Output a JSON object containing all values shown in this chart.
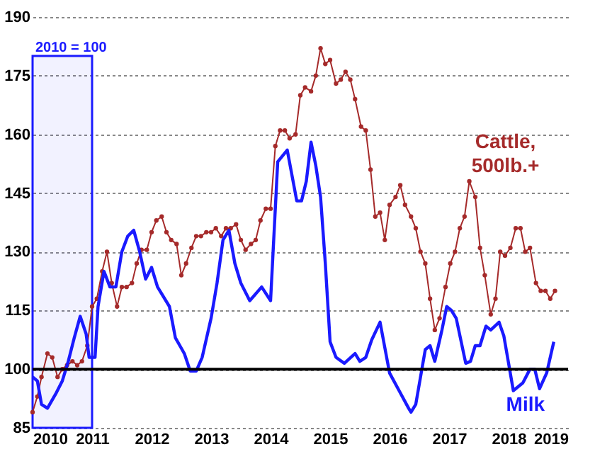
{
  "chart_data": {
    "type": "line",
    "xlim": [
      2010,
      2019
    ],
    "xticks": [
      2010,
      2011,
      2012,
      2013,
      2014,
      2015,
      2016,
      2017,
      2018,
      2019
    ],
    "ylim": [
      85,
      190
    ],
    "yticks": [
      85,
      100,
      115,
      130,
      145,
      160,
      175,
      190
    ],
    "grid": "y",
    "series": [
      {
        "name": "Cattle, 500lb.+",
        "color": "#a52a2a",
        "marker": "circle",
        "x": [
          2010.0,
          2010.08,
          2010.15,
          2010.25,
          2010.33,
          2010.42,
          2010.5,
          2010.58,
          2010.67,
          2010.75,
          2010.83,
          2010.92,
          2011.0,
          2011.08,
          2011.17,
          2011.25,
          2011.33,
          2011.42,
          2011.5,
          2011.58,
          2011.67,
          2011.75,
          2011.83,
          2011.92,
          2012.0,
          2012.08,
          2012.17,
          2012.25,
          2012.33,
          2012.42,
          2012.5,
          2012.58,
          2012.67,
          2012.75,
          2012.83,
          2012.92,
          2013.0,
          2013.08,
          2013.17,
          2013.25,
          2013.33,
          2013.42,
          2013.5,
          2013.58,
          2013.67,
          2013.75,
          2013.83,
          2013.92,
          2014.0,
          2014.08,
          2014.16,
          2014.24,
          2014.32,
          2014.42,
          2014.5,
          2014.58,
          2014.68,
          2014.76,
          2014.84,
          2014.92,
          2015.0,
          2015.1,
          2015.18,
          2015.26,
          2015.34,
          2015.42,
          2015.52,
          2015.6,
          2015.68,
          2015.76,
          2015.84,
          2015.92,
          2016.0,
          2016.1,
          2016.18,
          2016.26,
          2016.36,
          2016.44,
          2016.52,
          2016.6,
          2016.68,
          2016.76,
          2016.84,
          2016.94,
          2017.02,
          2017.1,
          2017.18,
          2017.26,
          2017.34,
          2017.44,
          2017.52,
          2017.6,
          2017.7,
          2017.78,
          2017.86,
          2017.94,
          2018.03,
          2018.12,
          2018.2,
          2018.28,
          2018.36,
          2018.46,
          2018.54,
          2018.62,
          2018.7,
          2018.78
        ],
        "values": [
          89,
          93,
          98,
          104,
          103,
          98,
          100,
          101,
          102,
          101,
          102,
          106,
          116,
          118,
          125,
          130,
          122,
          116,
          121,
          121,
          122,
          127,
          130.5,
          130.5,
          135,
          138,
          139,
          135,
          133,
          132,
          124,
          127,
          131,
          134,
          134,
          135,
          135,
          136,
          134,
          136,
          136,
          137,
          133,
          130.5,
          132,
          133,
          138,
          141,
          141,
          157,
          161,
          161,
          159,
          160,
          170,
          172,
          171,
          175,
          182,
          178,
          179,
          173,
          174,
          176,
          174,
          169,
          162,
          161,
          151,
          139,
          140,
          133,
          142,
          144,
          147,
          142,
          139,
          136,
          130,
          127,
          118,
          110,
          113,
          121,
          127,
          130,
          136,
          139,
          148,
          144,
          131,
          124,
          114,
          118,
          130,
          129,
          131,
          136,
          136,
          130,
          131,
          122,
          120,
          120,
          118,
          120
        ]
      },
      {
        "name": "Milk",
        "color": "#1a1aff",
        "marker": "none",
        "x": [
          2010.0,
          2010.08,
          2010.15,
          2010.25,
          2010.4,
          2010.5,
          2010.6,
          2010.7,
          2010.8,
          2010.9,
          2010.95,
          2011.05,
          2011.1,
          2011.2,
          2011.3,
          2011.4,
          2011.5,
          2011.6,
          2011.7,
          2011.8,
          2011.9,
          2012.0,
          2012.1,
          2012.3,
          2012.4,
          2012.55,
          2012.65,
          2012.75,
          2012.85,
          2013.0,
          2013.1,
          2013.2,
          2013.3,
          2013.4,
          2013.5,
          2013.65,
          2013.85,
          2014.0,
          2014.12,
          2014.28,
          2014.44,
          2014.52,
          2014.6,
          2014.68,
          2014.76,
          2014.84,
          2014.92,
          2015.0,
          2015.1,
          2015.24,
          2015.42,
          2015.5,
          2015.6,
          2015.7,
          2015.84,
          2016.0,
          2016.16,
          2016.32,
          2016.36,
          2016.44,
          2016.6,
          2016.68,
          2016.76,
          2016.88,
          2016.96,
          2017.04,
          2017.12,
          2017.28,
          2017.36,
          2017.44,
          2017.52,
          2017.62,
          2017.7,
          2017.84,
          2017.92,
          2018.08,
          2018.24,
          2018.36,
          2018.44,
          2018.52,
          2018.64,
          2018.76
        ],
        "values": [
          98,
          97,
          91,
          90,
          94,
          97,
          102,
          108,
          113.5,
          109,
          103,
          103,
          116,
          125,
          121,
          121,
          130,
          134,
          135.5,
          130,
          123,
          126,
          121,
          116,
          108,
          104,
          99.5,
          99.5,
          103,
          113,
          122,
          133,
          135.5,
          127,
          122,
          117.5,
          121,
          117.5,
          153,
          156,
          143,
          143,
          148,
          158,
          152,
          144,
          127,
          107,
          103,
          101.5,
          104,
          102,
          103,
          107.5,
          112,
          99,
          94.5,
          90,
          89,
          91,
          105,
          106,
          102,
          110,
          116,
          115,
          113,
          101.5,
          102,
          106,
          106,
          111,
          110,
          112,
          108.5,
          94.5,
          96.5,
          100,
          100,
          95,
          99,
          107
        ]
      }
    ],
    "ref_lines": [
      {
        "axis": "y",
        "value": 100,
        "color": "#000000"
      }
    ],
    "bands": [
      {
        "axis": "x",
        "from": 2010,
        "to": 2011,
        "label": "2010 = 100",
        "color": "#1a1aff"
      }
    ]
  }
}
